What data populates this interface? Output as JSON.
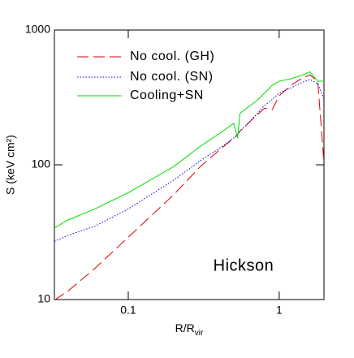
{
  "chart_data": {
    "type": "line",
    "x_label": {
      "main": "R/R",
      "sub": "vir"
    },
    "y_label": "S (keV cm²)",
    "annotation": "Hickson",
    "x_log": true,
    "y_log": true,
    "xlim": [
      0.0324,
      1.98
    ],
    "ylim": [
      10,
      1000
    ],
    "xticks": [
      0.1,
      1
    ],
    "yticks": [
      10,
      100,
      1000
    ],
    "legend": "upper left",
    "x": [
      0.0324,
      0.04,
      0.06,
      0.1,
      0.2,
      0.3,
      0.4,
      0.5,
      0.53,
      0.55,
      0.6,
      0.7,
      0.8,
      0.9,
      1.0,
      1.2,
      1.4,
      1.6,
      1.8,
      1.98
    ],
    "series": [
      {
        "name": "No cool. (GH)",
        "color": "#e00000",
        "dash": "long-dash",
        "values": [
          9.9,
          11.6,
          17,
          29,
          60,
          97,
          128,
          158,
          168,
          178,
          195,
          230,
          263,
          257,
          325,
          390,
          435,
          465,
          417,
          104
        ]
      },
      {
        "name": "No cool. (SN)",
        "color": "#0000e0",
        "dash": "dot",
        "values": [
          27,
          30,
          35,
          47,
          77,
          107,
          132,
          158,
          168,
          178,
          195,
          233,
          276,
          305,
          340,
          373,
          406,
          430,
          400,
          308
        ]
      },
      {
        "name": "Cooling+SN",
        "color": "#00dd00",
        "dash": "solid",
        "values": [
          34,
          39,
          47,
          62,
          97,
          137,
          170,
          203,
          158,
          241,
          260,
          295,
          340,
          390,
          417,
          435,
          460,
          490,
          417,
          417
        ]
      }
    ]
  }
}
